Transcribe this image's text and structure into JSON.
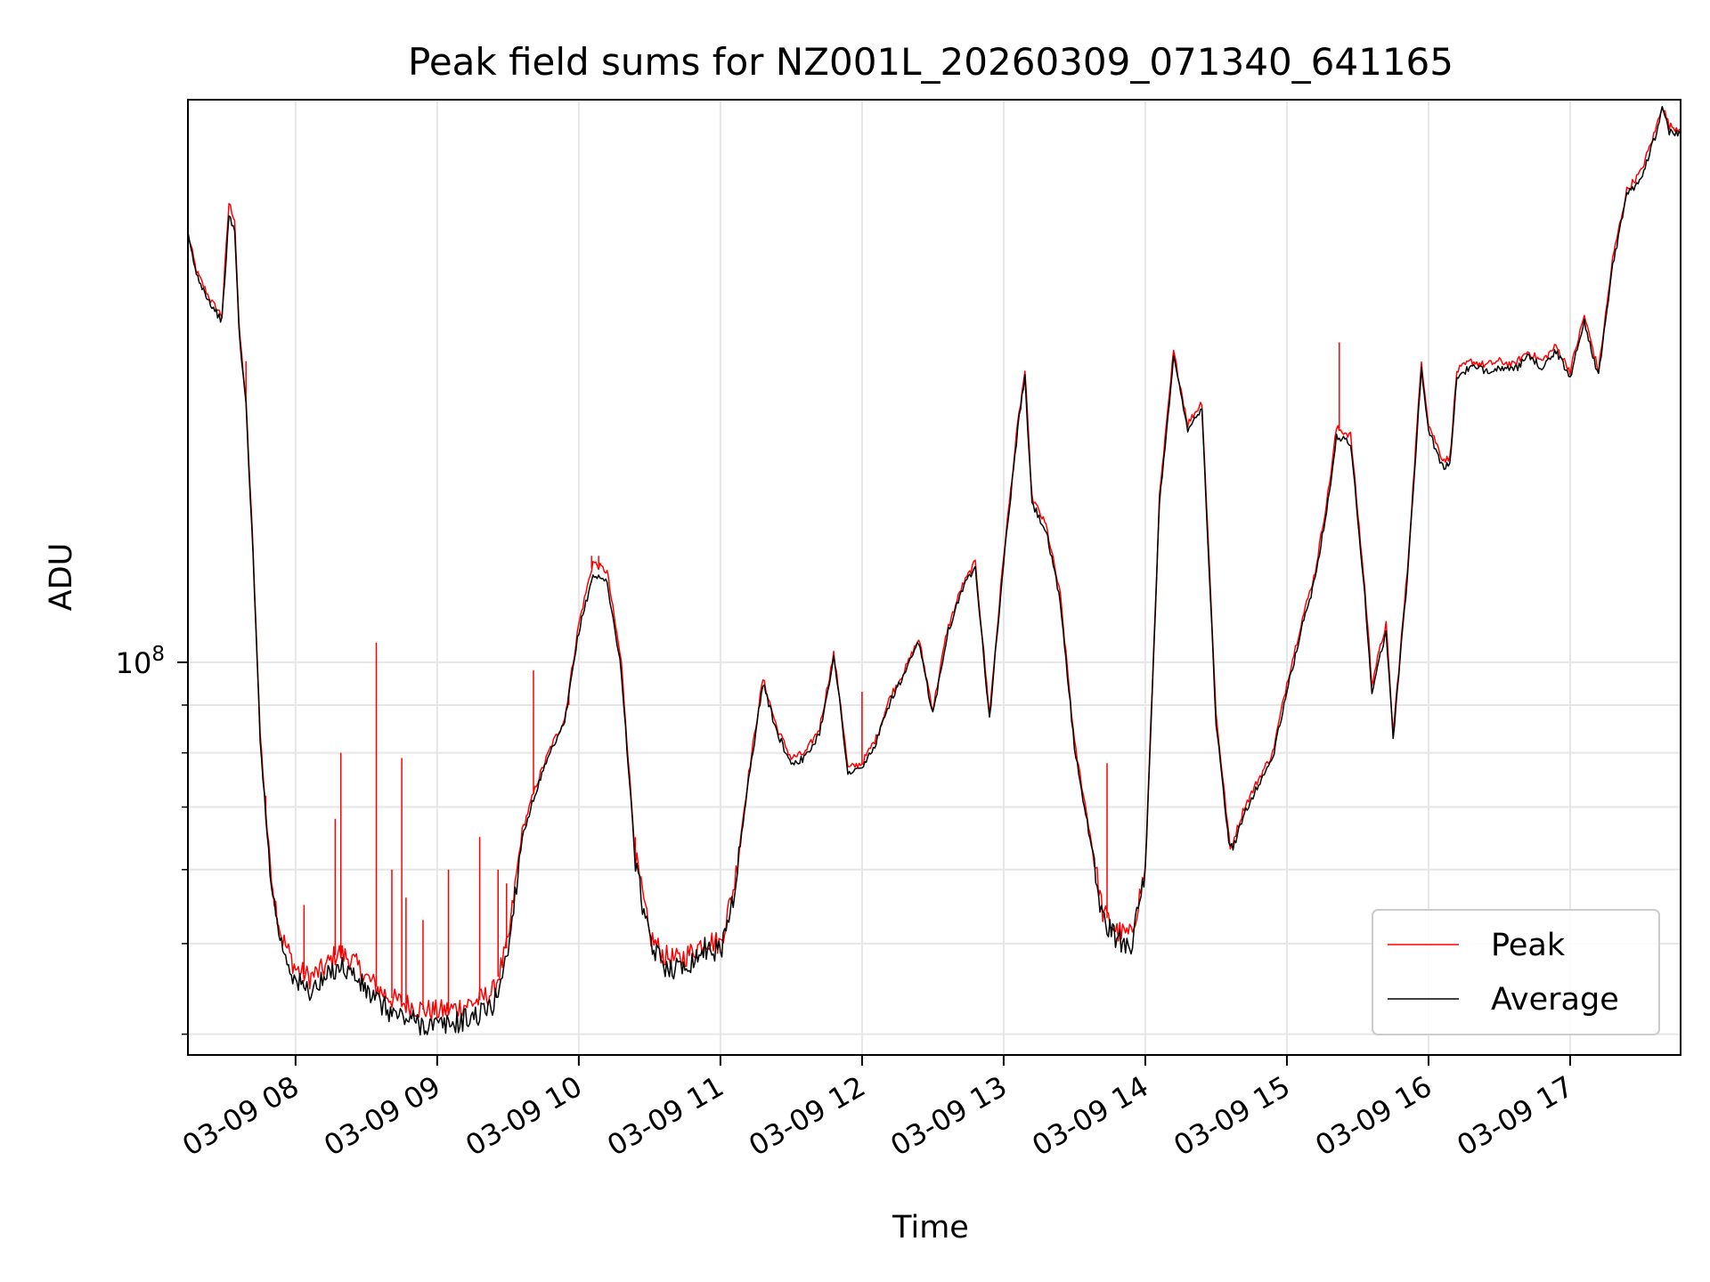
{
  "chart_data": {
    "type": "line",
    "title": "Peak field sums for NZ001L_20260309_071340_641165",
    "xlabel": "Time",
    "ylabel": "ADU",
    "yscale": "log",
    "ylim": [
      38000000,
      400000000
    ],
    "y_major_tick": {
      "value": 100000000,
      "base": "10",
      "exp": "8"
    },
    "y_minor_ticks": [
      40000000,
      50000000,
      60000000,
      70000000,
      80000000,
      90000000
    ],
    "xlim": [
      7.24,
      17.78
    ],
    "x_ticks": [
      {
        "value": 8,
        "label": "03-09 08"
      },
      {
        "value": 9,
        "label": "03-09 09"
      },
      {
        "value": 10,
        "label": "03-09 10"
      },
      {
        "value": 11,
        "label": "03-09 11"
      },
      {
        "value": 12,
        "label": "03-09 12"
      },
      {
        "value": 13,
        "label": "03-09 13"
      },
      {
        "value": 14,
        "label": "03-09 14"
      },
      {
        "value": 15,
        "label": "03-09 15"
      },
      {
        "value": 16,
        "label": "03-09 16"
      },
      {
        "value": 17,
        "label": "03-09 17"
      }
    ],
    "grid": true,
    "legend": {
      "location": "lower-right",
      "entries": [
        "Peak",
        "Average"
      ]
    },
    "series": [
      {
        "name": "Peak",
        "color": "#ff0000",
        "points": [
          [
            7.24,
            288000000
          ],
          [
            7.3,
            262000000
          ],
          [
            7.4,
            244000000
          ],
          [
            7.48,
            235000000
          ],
          [
            7.53,
            310000000
          ],
          [
            7.57,
            298000000
          ],
          [
            7.6,
            230000000
          ],
          [
            7.65,
            190000000
          ],
          [
            7.7,
            132000000
          ],
          [
            7.75,
            84000000
          ],
          [
            7.8,
            66000000
          ],
          [
            7.85,
            56000000
          ],
          [
            7.9,
            51000000
          ],
          [
            8.0,
            47000000
          ],
          [
            8.1,
            46000000
          ],
          [
            8.2,
            47000000
          ],
          [
            8.3,
            49000000
          ],
          [
            8.4,
            48000000
          ],
          [
            8.5,
            46000000
          ],
          [
            8.6,
            44500000
          ],
          [
            8.7,
            43500000
          ],
          [
            8.8,
            43000000
          ],
          [
            8.9,
            42500000
          ],
          [
            9.0,
            42300000
          ],
          [
            9.1,
            42500000
          ],
          [
            9.2,
            43000000
          ],
          [
            9.3,
            43500000
          ],
          [
            9.4,
            44500000
          ],
          [
            9.5,
            50000000
          ],
          [
            9.6,
            66000000
          ],
          [
            9.7,
            74000000
          ],
          [
            9.8,
            81000000
          ],
          [
            9.9,
            87000000
          ],
          [
            10.0,
            110000000
          ],
          [
            10.1,
            128000000
          ],
          [
            10.2,
            125000000
          ],
          [
            10.3,
            100000000
          ],
          [
            10.4,
            62000000
          ],
          [
            10.5,
            51000000
          ],
          [
            10.6,
            48500000
          ],
          [
            10.7,
            48000000
          ],
          [
            10.8,
            49000000
          ],
          [
            10.9,
            50500000
          ],
          [
            11.0,
            50000000
          ],
          [
            11.1,
            58000000
          ],
          [
            11.2,
            76000000
          ],
          [
            11.3,
            96000000
          ],
          [
            11.4,
            85000000
          ],
          [
            11.5,
            79000000
          ],
          [
            11.6,
            80000000
          ],
          [
            11.7,
            85000000
          ],
          [
            11.8,
            102000000
          ],
          [
            11.85,
            90000000
          ],
          [
            11.9,
            77000000
          ],
          [
            12.0,
            78000000
          ],
          [
            12.1,
            83000000
          ],
          [
            12.2,
            92000000
          ],
          [
            12.3,
            98000000
          ],
          [
            12.4,
            106000000
          ],
          [
            12.5,
            89000000
          ],
          [
            12.6,
            108000000
          ],
          [
            12.7,
            120000000
          ],
          [
            12.8,
            128000000
          ],
          [
            12.9,
            88000000
          ],
          [
            13.0,
            130000000
          ],
          [
            13.1,
            180000000
          ],
          [
            13.15,
            205000000
          ],
          [
            13.2,
            150000000
          ],
          [
            13.3,
            140000000
          ],
          [
            13.4,
            118000000
          ],
          [
            13.5,
            82000000
          ],
          [
            13.6,
            67000000
          ],
          [
            13.7,
            54000000
          ],
          [
            13.8,
            51500000
          ],
          [
            13.9,
            51000000
          ],
          [
            14.0,
            60000000
          ],
          [
            14.1,
            150000000
          ],
          [
            14.2,
            215000000
          ],
          [
            14.3,
            180000000
          ],
          [
            14.4,
            190000000
          ],
          [
            14.5,
            88000000
          ],
          [
            14.6,
            63000000
          ],
          [
            14.7,
            70000000
          ],
          [
            14.8,
            75000000
          ],
          [
            14.9,
            80000000
          ],
          [
            15.0,
            95000000
          ],
          [
            15.1,
            110000000
          ],
          [
            15.2,
            125000000
          ],
          [
            15.3,
            155000000
          ],
          [
            15.35,
            178000000
          ],
          [
            15.45,
            175000000
          ],
          [
            15.55,
            120000000
          ],
          [
            15.6,
            95000000
          ],
          [
            15.7,
            110000000
          ],
          [
            15.75,
            84000000
          ],
          [
            15.85,
            125000000
          ],
          [
            15.95,
            210000000
          ],
          [
            16.0,
            180000000
          ],
          [
            16.1,
            165000000
          ],
          [
            16.15,
            165000000
          ],
          [
            16.2,
            205000000
          ],
          [
            16.3,
            210000000
          ],
          [
            16.4,
            208000000
          ],
          [
            16.5,
            210000000
          ],
          [
            16.6,
            208000000
          ],
          [
            16.7,
            215000000
          ],
          [
            16.8,
            210000000
          ],
          [
            16.9,
            218000000
          ],
          [
            17.0,
            205000000
          ],
          [
            17.1,
            235000000
          ],
          [
            17.2,
            205000000
          ],
          [
            17.25,
            235000000
          ],
          [
            17.3,
            270000000
          ],
          [
            17.4,
            320000000
          ],
          [
            17.5,
            335000000
          ],
          [
            17.6,
            370000000
          ],
          [
            17.65,
            395000000
          ],
          [
            17.7,
            375000000
          ],
          [
            17.78,
            372000000
          ]
        ],
        "spikes": [
          [
            7.65,
            210000000
          ],
          [
            7.79,
            72000000
          ],
          [
            8.06,
            55000000
          ],
          [
            8.28,
            68000000
          ],
          [
            8.32,
            80000000
          ],
          [
            8.57,
            105000000
          ],
          [
            8.68,
            60000000
          ],
          [
            8.75,
            79000000
          ],
          [
            8.78,
            56000000
          ],
          [
            8.9,
            53000000
          ],
          [
            9.08,
            60000000
          ],
          [
            9.3,
            65000000
          ],
          [
            9.43,
            60000000
          ],
          [
            9.49,
            58000000
          ],
          [
            9.68,
            98000000
          ],
          [
            9.93,
            90000000
          ],
          [
            10.09,
            130000000
          ],
          [
            10.14,
            130000000
          ],
          [
            10.4,
            65000000
          ],
          [
            12.0,
            93000000
          ],
          [
            13.73,
            78000000
          ],
          [
            15.37,
            220000000
          ]
        ]
      },
      {
        "name": "Average",
        "color": "#000000",
        "points": [
          [
            7.24,
            286000000
          ],
          [
            7.3,
            260000000
          ],
          [
            7.4,
            242000000
          ],
          [
            7.48,
            232000000
          ],
          [
            7.53,
            300000000
          ],
          [
            7.57,
            290000000
          ],
          [
            7.6,
            228000000
          ],
          [
            7.65,
            188000000
          ],
          [
            7.7,
            130000000
          ],
          [
            7.75,
            83000000
          ],
          [
            7.8,
            65000000
          ],
          [
            7.85,
            55000000
          ],
          [
            7.9,
            50000000
          ],
          [
            8.0,
            45500000
          ],
          [
            8.1,
            44500000
          ],
          [
            8.2,
            45500000
          ],
          [
            8.3,
            47500000
          ],
          [
            8.4,
            46500000
          ],
          [
            8.5,
            44500000
          ],
          [
            8.6,
            43000000
          ],
          [
            8.7,
            42000000
          ],
          [
            8.8,
            41500000
          ],
          [
            8.9,
            41000000
          ],
          [
            9.0,
            40800000
          ],
          [
            9.1,
            41000000
          ],
          [
            9.2,
            41500000
          ],
          [
            9.3,
            42000000
          ],
          [
            9.4,
            43000000
          ],
          [
            9.5,
            49000000
          ],
          [
            9.6,
            65000000
          ],
          [
            9.7,
            73000000
          ],
          [
            9.8,
            80000000
          ],
          [
            9.9,
            86000000
          ],
          [
            10.0,
            108000000
          ],
          [
            10.1,
            124000000
          ],
          [
            10.2,
            122000000
          ],
          [
            10.3,
            98000000
          ],
          [
            10.4,
            61000000
          ],
          [
            10.5,
            50000000
          ],
          [
            10.6,
            47500000
          ],
          [
            10.7,
            47000000
          ],
          [
            10.8,
            48000000
          ],
          [
            10.9,
            49500000
          ],
          [
            11.0,
            49000000
          ],
          [
            11.1,
            57000000
          ],
          [
            11.2,
            75000000
          ],
          [
            11.3,
            95000000
          ],
          [
            11.4,
            84000000
          ],
          [
            11.5,
            78000000
          ],
          [
            11.6,
            79000000
          ],
          [
            11.7,
            84000000
          ],
          [
            11.8,
            101000000
          ],
          [
            11.85,
            89000000
          ],
          [
            11.9,
            76000000
          ],
          [
            12.0,
            77000000
          ],
          [
            12.1,
            82000000
          ],
          [
            12.2,
            91000000
          ],
          [
            12.3,
            97000000
          ],
          [
            12.4,
            105000000
          ],
          [
            12.5,
            88000000
          ],
          [
            12.6,
            107000000
          ],
          [
            12.7,
            119000000
          ],
          [
            12.8,
            127000000
          ],
          [
            12.9,
            87000000
          ],
          [
            13.0,
            128000000
          ],
          [
            13.1,
            178000000
          ],
          [
            13.15,
            202000000
          ],
          [
            13.2,
            148000000
          ],
          [
            13.3,
            138000000
          ],
          [
            13.4,
            116000000
          ],
          [
            13.5,
            81000000
          ],
          [
            13.6,
            66000000
          ],
          [
            13.7,
            53000000
          ],
          [
            13.8,
            50500000
          ],
          [
            13.9,
            50000000
          ],
          [
            14.0,
            59000000
          ],
          [
            14.1,
            148000000
          ],
          [
            14.2,
            212000000
          ],
          [
            14.3,
            178000000
          ],
          [
            14.4,
            187000000
          ],
          [
            14.5,
            86000000
          ],
          [
            14.6,
            62000000
          ],
          [
            14.7,
            69000000
          ],
          [
            14.8,
            74000000
          ],
          [
            14.9,
            79000000
          ],
          [
            15.0,
            93000000
          ],
          [
            15.1,
            108000000
          ],
          [
            15.2,
            123000000
          ],
          [
            15.3,
            152000000
          ],
          [
            15.35,
            174000000
          ],
          [
            15.45,
            172000000
          ],
          [
            15.55,
            118000000
          ],
          [
            15.6,
            93000000
          ],
          [
            15.7,
            108000000
          ],
          [
            15.75,
            83000000
          ],
          [
            15.85,
            123000000
          ],
          [
            15.95,
            206000000
          ],
          [
            16.0,
            177000000
          ],
          [
            16.1,
            162000000
          ],
          [
            16.15,
            162000000
          ],
          [
            16.2,
            202000000
          ],
          [
            16.3,
            207000000
          ],
          [
            16.4,
            205000000
          ],
          [
            16.5,
            207000000
          ],
          [
            16.6,
            205000000
          ],
          [
            16.7,
            212000000
          ],
          [
            16.8,
            207000000
          ],
          [
            16.9,
            215000000
          ],
          [
            17.0,
            202000000
          ],
          [
            17.1,
            232000000
          ],
          [
            17.2,
            202000000
          ],
          [
            17.25,
            232000000
          ],
          [
            17.3,
            266000000
          ],
          [
            17.4,
            316000000
          ],
          [
            17.5,
            330000000
          ],
          [
            17.6,
            365000000
          ],
          [
            17.65,
            390000000
          ],
          [
            17.7,
            370000000
          ],
          [
            17.78,
            368000000
          ]
        ]
      }
    ]
  }
}
